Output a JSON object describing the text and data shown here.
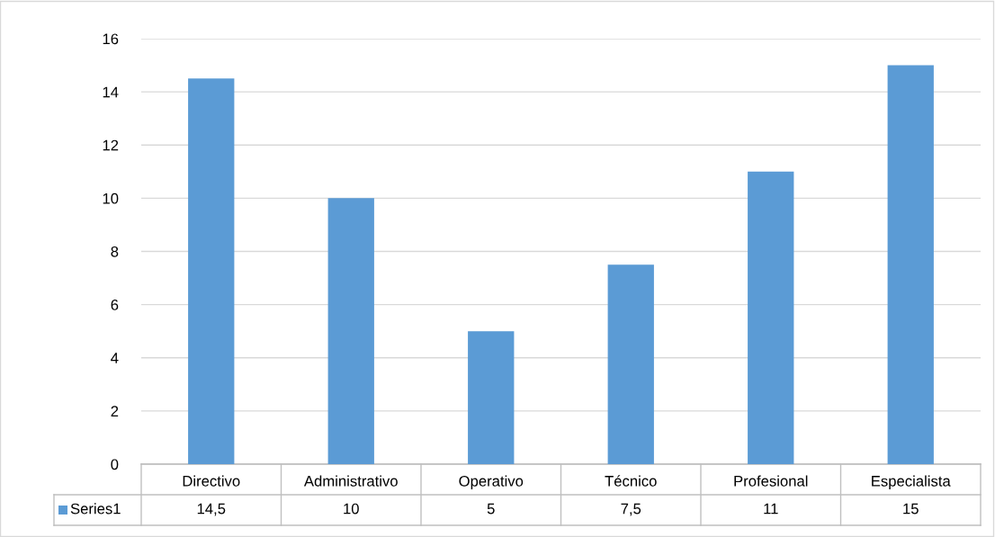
{
  "chart_data": {
    "type": "bar",
    "categories": [
      "Directivo",
      "Administrativo",
      "Operativo",
      "Técnico",
      "Profesional",
      "Especialista"
    ],
    "series": [
      {
        "name": "Series1",
        "color": "#5b9bd5",
        "values": [
          14.5,
          10,
          5,
          7.5,
          11,
          15
        ],
        "value_labels": [
          "14,5",
          "10",
          "5",
          "7,5",
          "11",
          "15"
        ]
      }
    ],
    "ylim": [
      0,
      16
    ],
    "yticks": [
      0,
      2,
      4,
      6,
      8,
      10,
      12,
      14,
      16
    ],
    "grid": "y",
    "legend": "bottom"
  }
}
